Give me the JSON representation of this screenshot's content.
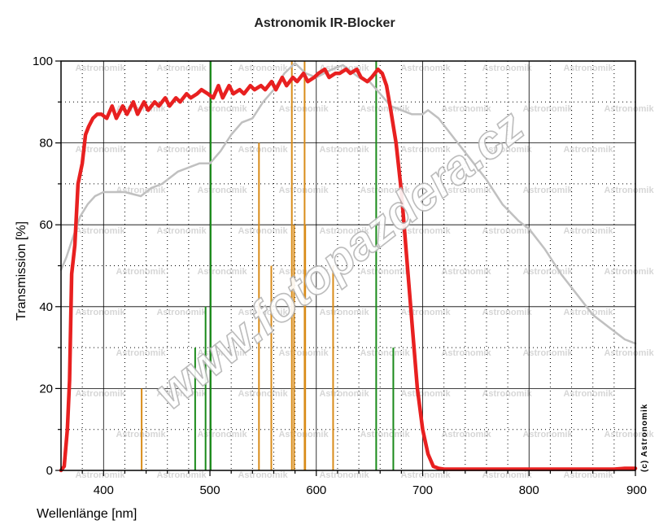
{
  "chart_data": {
    "type": "line",
    "title": "Astronomik IR-Blocker",
    "xlabel": "Wellenlänge [nm]",
    "ylabel": "Transmission [%]",
    "xlim": [
      360,
      900
    ],
    "ylim": [
      0,
      100
    ],
    "x_ticks": [
      400,
      500,
      600,
      700,
      800,
      900
    ],
    "y_ticks": [
      0,
      20,
      40,
      60,
      80,
      100
    ],
    "grid": true,
    "series": [
      {
        "color": "#c0c0c0",
        "points": [
          [
            360,
            49
          ],
          [
            365,
            52
          ],
          [
            370,
            56
          ],
          [
            378,
            62
          ],
          [
            385,
            65
          ],
          [
            392,
            67
          ],
          [
            400,
            68
          ],
          [
            410,
            68
          ],
          [
            420,
            68
          ],
          [
            435,
            67
          ],
          [
            445,
            69
          ],
          [
            455,
            70
          ],
          [
            470,
            73
          ],
          [
            480,
            74
          ],
          [
            490,
            75
          ],
          [
            500,
            75
          ],
          [
            510,
            78
          ],
          [
            520,
            82
          ],
          [
            530,
            85
          ],
          [
            540,
            86
          ],
          [
            550,
            90
          ],
          [
            560,
            93
          ],
          [
            570,
            97
          ],
          [
            580,
            99.5
          ],
          [
            590,
            97
          ],
          [
            600,
            96
          ],
          [
            615,
            98
          ],
          [
            625,
            99
          ],
          [
            640,
            96
          ],
          [
            650,
            95
          ],
          [
            660,
            92
          ],
          [
            670,
            89
          ],
          [
            680,
            88
          ],
          [
            690,
            87
          ],
          [
            700,
            87
          ],
          [
            705,
            88
          ],
          [
            715,
            86
          ],
          [
            730,
            81
          ],
          [
            745,
            76
          ],
          [
            760,
            71
          ],
          [
            775,
            65
          ],
          [
            790,
            61
          ],
          [
            800,
            59
          ],
          [
            815,
            54
          ],
          [
            830,
            48
          ],
          [
            845,
            43
          ],
          [
            860,
            38
          ],
          [
            875,
            35
          ],
          [
            890,
            32
          ],
          [
            900,
            31
          ]
        ]
      },
      {
        "color": "#e82020",
        "points": [
          [
            360,
            0
          ],
          [
            363,
            1
          ],
          [
            366,
            10
          ],
          [
            368,
            22
          ],
          [
            370,
            48
          ],
          [
            373,
            55
          ],
          [
            376,
            70
          ],
          [
            380,
            75
          ],
          [
            383,
            82
          ],
          [
            386,
            84
          ],
          [
            390,
            86
          ],
          [
            394,
            87
          ],
          [
            398,
            87
          ],
          [
            403,
            86
          ],
          [
            408,
            89
          ],
          [
            412,
            86
          ],
          [
            418,
            89
          ],
          [
            422,
            87
          ],
          [
            428,
            90
          ],
          [
            432,
            87
          ],
          [
            438,
            90
          ],
          [
            442,
            88
          ],
          [
            448,
            90
          ],
          [
            452,
            89
          ],
          [
            458,
            91
          ],
          [
            462,
            89
          ],
          [
            468,
            91
          ],
          [
            472,
            90
          ],
          [
            478,
            92
          ],
          [
            482,
            91
          ],
          [
            488,
            92
          ],
          [
            492,
            93
          ],
          [
            498,
            92
          ],
          [
            503,
            91
          ],
          [
            508,
            94
          ],
          [
            512,
            91
          ],
          [
            518,
            94
          ],
          [
            522,
            92
          ],
          [
            528,
            93
          ],
          [
            532,
            92
          ],
          [
            538,
            94
          ],
          [
            542,
            93
          ],
          [
            548,
            94
          ],
          [
            552,
            93
          ],
          [
            558,
            95
          ],
          [
            562,
            93
          ],
          [
            568,
            96
          ],
          [
            572,
            94
          ],
          [
            578,
            96
          ],
          [
            582,
            95
          ],
          [
            588,
            97
          ],
          [
            592,
            95
          ],
          [
            598,
            96
          ],
          [
            602,
            97
          ],
          [
            608,
            98
          ],
          [
            612,
            96
          ],
          [
            618,
            97
          ],
          [
            622,
            97
          ],
          [
            628,
            98
          ],
          [
            632,
            97
          ],
          [
            638,
            98
          ],
          [
            642,
            96
          ],
          [
            648,
            95
          ],
          [
            652,
            96
          ],
          [
            658,
            98
          ],
          [
            662,
            97
          ],
          [
            666,
            94
          ],
          [
            670,
            88
          ],
          [
            675,
            80
          ],
          [
            680,
            68
          ],
          [
            685,
            52
          ],
          [
            690,
            36
          ],
          [
            695,
            20
          ],
          [
            700,
            10
          ],
          [
            705,
            4
          ],
          [
            710,
            1
          ],
          [
            715,
            0.5
          ],
          [
            720,
            0.3
          ],
          [
            740,
            0.3
          ],
          [
            760,
            0.3
          ],
          [
            800,
            0.3
          ],
          [
            850,
            0.3
          ],
          [
            880,
            0.3
          ],
          [
            890,
            0.5
          ],
          [
            900,
            0.5
          ]
        ]
      }
    ],
    "emission_lines": [
      {
        "x": 435.8,
        "y": 20,
        "color": "#d98c1a"
      },
      {
        "x": 486.1,
        "y": 30,
        "color": "#1a8a1a"
      },
      {
        "x": 495.9,
        "y": 40,
        "color": "#1a8a1a"
      },
      {
        "x": 500.7,
        "y": 100,
        "color": "#1a8a1a"
      },
      {
        "x": 546.1,
        "y": 80,
        "color": "#d98c1a"
      },
      {
        "x": 557.7,
        "y": 50,
        "color": "#d98c1a"
      },
      {
        "x": 577.0,
        "y": 100,
        "color": "#d98c1a"
      },
      {
        "x": 579.1,
        "y": 60,
        "color": "#d98c1a"
      },
      {
        "x": 589.0,
        "y": 100,
        "color": "#d98c1a"
      },
      {
        "x": 589.6,
        "y": 60,
        "color": "#d98c1a"
      },
      {
        "x": 615.8,
        "y": 50,
        "color": "#d98c1a"
      },
      {
        "x": 656.3,
        "y": 100,
        "color": "#1a8a1a"
      },
      {
        "x": 672.4,
        "y": 30,
        "color": "#1a8a1a"
      }
    ]
  },
  "watermark": {
    "site": "www.fotopazdera.cz",
    "brand": "Astronomik",
    "copyright": "(c) Astronomik"
  }
}
